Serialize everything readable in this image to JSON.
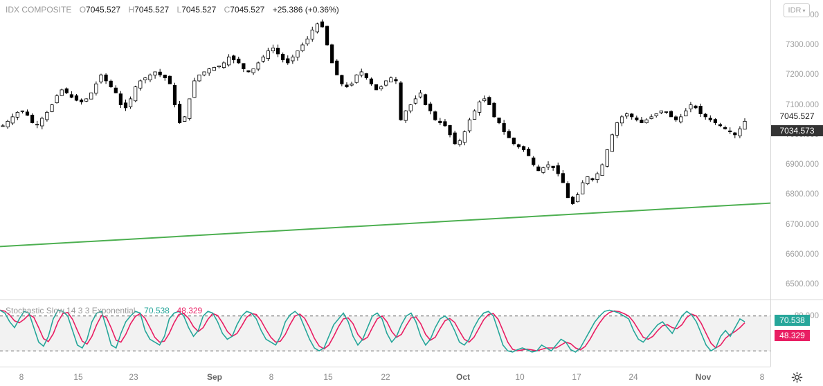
{
  "legend": {
    "symbol": "IDX COMPOSITE",
    "o_label": "O",
    "o_value": "7045.527",
    "h_label": "H",
    "h_value": "7045.527",
    "l_label": "L",
    "l_value": "7045.527",
    "c_label": "C",
    "c_value": "7045.527",
    "change": "+25.386 (+0.36%)"
  },
  "currency": {
    "label": "IDR",
    "icon": "chevron-down-icon"
  },
  "price_axis": {
    "ticks": [
      "7400.000",
      "7300.000",
      "7200.000",
      "7100.000",
      "7000.000",
      "6900.000",
      "6800.000",
      "6700.000",
      "6600.000",
      "6500.000"
    ],
    "tick_values": [
      7400,
      7300,
      7200,
      7100,
      7000,
      6900,
      6800,
      6700,
      6600,
      6500
    ],
    "last_price": "7045.527",
    "last_price_value": 7045.527,
    "prev_price": "7034.573",
    "prev_price_value": 7034.573
  },
  "oscillator": {
    "name": "Stochastic Slow 14 3 3 Exponential",
    "k_value": "70.538",
    "d_value": "48.329",
    "k_color": "#26a69a",
    "d_color": "#e91e63",
    "band_upper": "80.000",
    "band_upper_value": 80,
    "band_lower_value": 20
  },
  "time_axis": {
    "ticks": [
      {
        "label": "8",
        "major": false
      },
      {
        "label": "15",
        "major": false
      },
      {
        "label": "23",
        "major": false
      },
      {
        "label": "Sep",
        "major": true
      },
      {
        "label": "8",
        "major": false
      },
      {
        "label": "15",
        "major": false
      },
      {
        "label": "22",
        "major": false
      },
      {
        "label": "Oct",
        "major": true
      },
      {
        "label": "10",
        "major": false
      },
      {
        "label": "17",
        "major": false
      },
      {
        "label": "24",
        "major": false
      },
      {
        "label": "Nov",
        "major": true
      },
      {
        "label": "8",
        "major": false
      }
    ]
  },
  "colors": {
    "candle": "#000000",
    "trendline": "#4caf50",
    "band_fill": "#f2f2f2",
    "last_price_bg": "#333333"
  },
  "settings": {
    "icon": "gear-icon"
  },
  "chart_data": {
    "type": "candlestick",
    "ylim": [
      6450,
      7450
    ],
    "trend_line": {
      "start": 6627,
      "end": 6772
    },
    "close_path": [
      7030,
      7045,
      7060,
      7075,
      7080,
      7065,
      7040,
      7035,
      7055,
      7075,
      7100,
      7130,
      7150,
      7140,
      7125,
      7115,
      7110,
      7120,
      7140,
      7170,
      7200,
      7180,
      7160,
      7140,
      7100,
      7090,
      7120,
      7160,
      7180,
      7190,
      7200,
      7210,
      7200,
      7190,
      7170,
      7100,
      7040,
      7060,
      7120,
      7180,
      7200,
      7210,
      7220,
      7225,
      7230,
      7240,
      7260,
      7250,
      7240,
      7220,
      7210,
      7220,
      7240,
      7260,
      7280,
      7290,
      7270,
      7250,
      7240,
      7260,
      7280,
      7300,
      7320,
      7350,
      7370,
      7360,
      7300,
      7240,
      7200,
      7170,
      7160,
      7170,
      7200,
      7210,
      7190,
      7170,
      7150,
      7160,
      7180,
      7190,
      7180,
      7050,
      7080,
      7100,
      7120,
      7140,
      7100,
      7080,
      7050,
      7040,
      7030,
      7000,
      6970,
      6980,
      7010,
      7050,
      7080,
      7110,
      7120,
      7100,
      7060,
      7040,
      7010,
      6990,
      6970,
      6960,
      6950,
      6930,
      6900,
      6880,
      6890,
      6900,
      6890,
      6870,
      6840,
      6790,
      6770,
      6800,
      6840,
      6860,
      6850,
      6870,
      6900,
      6950,
      7000,
      7040,
      7060,
      7070,
      7060,
      7050,
      7040,
      7050,
      7060,
      7070,
      7080,
      7075,
      7060,
      7050,
      7060,
      7080,
      7100,
      7090,
      7070,
      7060,
      7050,
      7040,
      7030,
      7020,
      7010,
      7000,
      7020,
      7045
    ],
    "stoch_k_path": [
      90,
      85,
      70,
      60,
      75,
      88,
      85,
      60,
      35,
      28,
      45,
      75,
      90,
      88,
      80,
      55,
      30,
      25,
      40,
      70,
      85,
      88,
      60,
      30,
      25,
      50,
      70,
      80,
      88,
      85,
      55,
      40,
      35,
      30,
      45,
      75,
      85,
      88,
      80,
      60,
      45,
      55,
      80,
      88,
      85,
      70,
      50,
      40,
      45,
      65,
      80,
      88,
      85,
      75,
      55,
      40,
      35,
      30,
      45,
      70,
      82,
      88,
      80,
      60,
      40,
      25,
      20,
      25,
      45,
      65,
      75,
      85,
      70,
      45,
      30,
      40,
      60,
      80,
      85,
      75,
      50,
      35,
      45,
      65,
      80,
      85,
      70,
      45,
      30,
      40,
      60,
      75,
      80,
      72,
      55,
      35,
      30,
      40,
      60,
      75,
      85,
      88,
      80,
      55,
      30,
      20,
      18,
      22,
      25,
      22,
      18,
      20,
      30,
      25,
      20,
      30,
      40,
      35,
      22,
      18,
      25,
      40,
      55,
      70,
      80,
      88,
      90,
      88,
      85,
      80,
      75,
      55,
      40,
      35,
      45,
      55,
      65,
      70,
      60,
      50,
      65,
      80,
      88,
      82,
      70,
      50,
      30,
      20,
      25,
      45,
      55,
      45,
      60,
      75,
      70
    ]
  }
}
